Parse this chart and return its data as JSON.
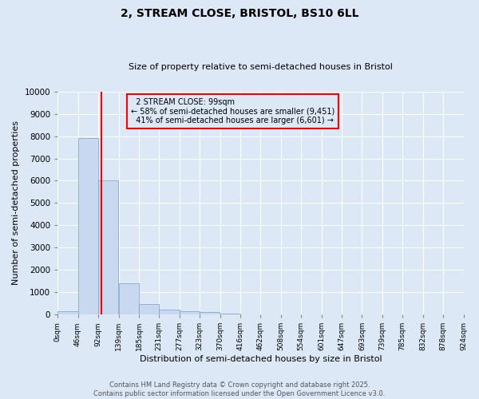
{
  "title": "2, STREAM CLOSE, BRISTOL, BS10 6LL",
  "subtitle": "Size of property relative to semi-detached houses in Bristol",
  "xlabel": "Distribution of semi-detached houses by size in Bristol",
  "ylabel": "Number of semi-detached properties",
  "property_label": "2 STREAM CLOSE: 99sqm",
  "pct_smaller": 58,
  "pct_larger": 41,
  "n_smaller": 9451,
  "n_larger": 6601,
  "bin_labels": [
    "0sqm",
    "46sqm",
    "92sqm",
    "139sqm",
    "185sqm",
    "231sqm",
    "277sqm",
    "323sqm",
    "370sqm",
    "416sqm",
    "462sqm",
    "508sqm",
    "554sqm",
    "601sqm",
    "647sqm",
    "693sqm",
    "739sqm",
    "785sqm",
    "832sqm",
    "878sqm",
    "924sqm"
  ],
  "bin_edges": [
    0,
    46,
    92,
    139,
    185,
    231,
    277,
    323,
    370,
    416,
    462,
    508,
    554,
    601,
    647,
    693,
    739,
    785,
    832,
    878,
    924
  ],
  "bar_values": [
    150,
    7900,
    6000,
    1400,
    480,
    230,
    150,
    100,
    50,
    0,
    0,
    0,
    0,
    0,
    0,
    0,
    0,
    0,
    0,
    0
  ],
  "bar_color": "#c8d8ee",
  "bar_edge_color": "#7a9cc4",
  "vline_x": 99,
  "vline_color": "red",
  "annotation_box_color": "red",
  "ylim": [
    0,
    10000
  ],
  "yticks": [
    0,
    1000,
    2000,
    3000,
    4000,
    5000,
    6000,
    7000,
    8000,
    9000,
    10000
  ],
  "bg_color": "#dce8f5",
  "grid_color": "white",
  "footer1": "Contains HM Land Registry data © Crown copyright and database right 2025.",
  "footer2": "Contains public sector information licensed under the Open Government Licence v3.0."
}
